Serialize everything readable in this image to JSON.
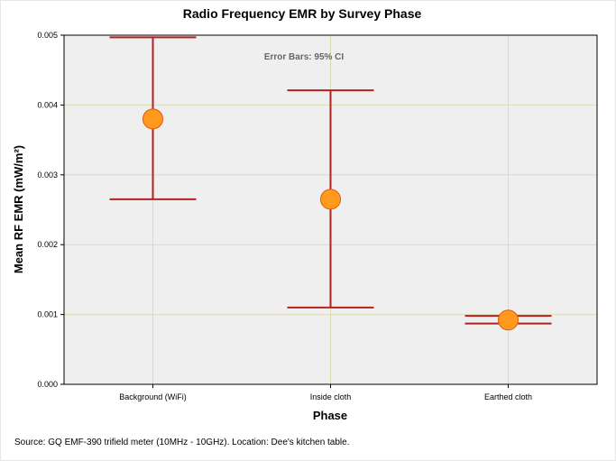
{
  "chart_data": {
    "type": "scatter",
    "title": "Radio Frequency EMR by Survey Phase",
    "xlabel": "Phase",
    "ylabel": "Mean RF EMR (mW/m²)",
    "ylim": [
      0,
      0.005
    ],
    "y_ticks": [
      "0.000",
      "0.001",
      "0.002",
      "0.003",
      "0.004",
      "0.005"
    ],
    "y_tick_values": [
      0,
      0.001,
      0.002,
      0.003,
      0.004,
      0.005
    ],
    "grid": true,
    "categories": [
      "Background (WiFi)",
      "Inside cloth",
      "Earthed cloth"
    ],
    "series": [
      {
        "name": "Mean RF EMR",
        "values": [
          0.0038,
          0.00265,
          0.00092
        ],
        "ci_lower": [
          0.00265,
          0.0011,
          0.00087
        ],
        "ci_upper": [
          0.00497,
          0.00421,
          0.00098
        ]
      }
    ],
    "annotation": "Error Bars: 95% CI",
    "source": "Source: GQ EMF-390 trifield meter (10MHz - 10GHz). Location: Dee's kitchen table.",
    "colors": {
      "plot_background": "#efefef",
      "grid": "#dcdcb4",
      "error_bar": "#b22222",
      "marker_fill": "#ff9a1f",
      "marker_stroke": "#e2560e"
    }
  }
}
